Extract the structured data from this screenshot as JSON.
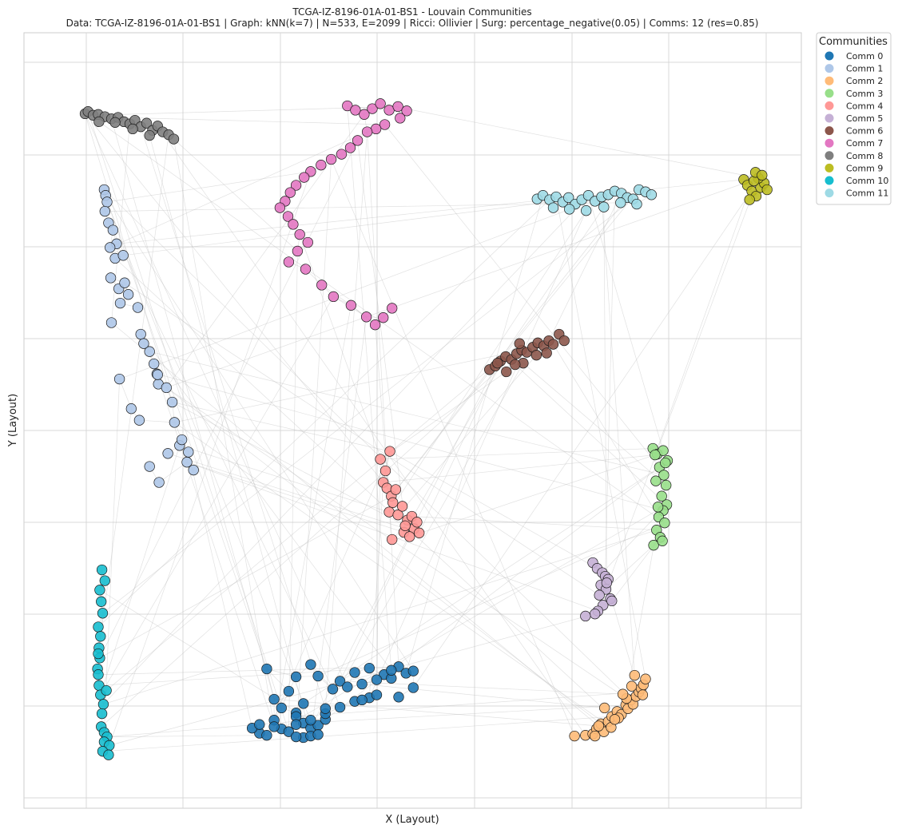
{
  "chart_data": {
    "type": "scatter",
    "title": "TCGA-IZ-8196-01A-01-BS1 - Louvain Communities",
    "subtitle": "Data: TCGA-IZ-8196-01A-01-BS1 | Graph: kNN(k=7) | N=533, E=2099 | Ricci: Ollivier | Surg: percentage_negative(0.05) | Comms: 12 (res=0.85)",
    "xlabel": "X (Layout)",
    "ylabel": "Y (Layout)",
    "xlim": [
      0,
      100
    ],
    "ylim": [
      0,
      100
    ],
    "grid": true,
    "legend": {
      "title": "Communities",
      "placement": "outside-top-right"
    },
    "series": [
      {
        "name": "Comm 0",
        "color": "#1f77b4",
        "x": [
          29,
          32,
          30,
          31,
          33,
          30,
          34,
          35,
          33,
          36,
          37,
          34,
          33,
          35,
          36,
          38,
          39,
          41,
          43,
          40,
          42,
          45,
          46,
          44,
          47,
          48,
          49,
          46,
          43,
          41,
          39,
          37,
          35,
          33,
          31,
          28,
          27,
          29,
          34,
          35,
          36,
          32,
          30,
          28,
          44,
          49,
          47,
          42,
          37,
          33
        ],
        "y": [
          16.3,
          13.2,
          12.1,
          10.9,
          10.2,
          9.2,
          8.8,
          8.1,
          9.7,
          8.5,
          9.3,
          11.5,
          15.2,
          16.9,
          15.3,
          13.5,
          14.6,
          15.8,
          16.4,
          13.8,
          14.2,
          15.5,
          15.0,
          14.8,
          16.6,
          15.7,
          16.0,
          16.1,
          12.3,
          11.8,
          11.0,
          10.1,
          9.2,
          8.6,
          8.0,
          7.4,
          8.1,
          7.1,
          6.8,
          7.0,
          7.2,
          7.6,
          8.3,
          8.6,
          12.7,
          13.7,
          12.4,
          12.0,
          10.8,
          6.9
        ]
      },
      {
        "name": "Comm 1",
        "color": "#aec7e8",
        "x": [
          6.8,
          7.0,
          7.2,
          6.9,
          7.4,
          8.0,
          8.5,
          7.6,
          8.3,
          9.4,
          7.7,
          8.8,
          9.6,
          10.1,
          9.0,
          11.4,
          11.8,
          13.0,
          12.2,
          13.6,
          14.0,
          14.2,
          15.3,
          16.1,
          17.1,
          17.4,
          18.3,
          19.0,
          15.5,
          14.3,
          13.0,
          11.6,
          10.5,
          8.9,
          7.8,
          14.1,
          16.4,
          18.1
        ],
        "y": [
          82.6,
          81.8,
          80.9,
          79.6,
          78.0,
          77.0,
          75.1,
          74.6,
          73.1,
          73.5,
          70.4,
          68.9,
          69.7,
          68.1,
          66.9,
          66.3,
          62.6,
          60.2,
          61.3,
          58.5,
          57.1,
          55.7,
          55.2,
          53.2,
          47.2,
          48.0,
          46.3,
          43.8,
          46.1,
          42.1,
          44.3,
          50.7,
          52.3,
          56.4,
          64.2,
          57.0,
          50.4,
          44.9
        ]
      },
      {
        "name": "Comm 2",
        "color": "#ffbb78",
        "x": [
          71.0,
          72.5,
          73.5,
          74.0,
          74.6,
          75.0,
          75.6,
          76.1,
          76.8,
          77.4,
          78.0,
          78.3,
          78.7,
          79.0,
          79.4,
          79.8,
          80.1,
          80.4,
          80.7,
          79.2,
          78.1,
          77.0,
          76.0,
          75.1,
          74.3,
          73.8,
          76.5,
          77.6,
          78.8,
          80.3
        ],
        "y": [
          7.0,
          7.1,
          7.3,
          8.0,
          8.7,
          7.6,
          9.0,
          9.7,
          10.4,
          10.0,
          11.3,
          10.8,
          12.0,
          11.4,
          12.5,
          13.1,
          13.6,
          14.1,
          14.9,
          15.4,
          12.2,
          9.5,
          8.2,
          10.9,
          8.4,
          7.0,
          9.3,
          12.8,
          13.9,
          12.7
        ]
      },
      {
        "name": "Comm 3",
        "color": "#98df8a",
        "x": [
          81.7,
          82.3,
          83.1,
          83.7,
          82.6,
          83.2,
          83.5,
          82.9,
          83.6,
          83.1,
          82.5,
          83.3,
          82.2,
          82.7,
          81.8,
          83.0,
          82.4,
          82.1,
          83.4,
          82.0
        ],
        "y": [
          46.8,
          46.0,
          46.5,
          45.1,
          44.2,
          43.1,
          41.7,
          40.2,
          39.0,
          38.2,
          37.3,
          36.5,
          35.5,
          34.5,
          33.4,
          34.0,
          38.7,
          42.3,
          44.8,
          45.9
        ]
      },
      {
        "name": "Comm 4",
        "color": "#ff9896",
        "x": [
          44.5,
          45.8,
          45.2,
          44.9,
          45.4,
          46.0,
          46.6,
          46.2,
          45.7,
          46.9,
          47.5,
          48.2,
          48.8,
          49.1,
          49.8,
          47.7,
          46.1,
          48.5,
          47.9,
          49.5
        ],
        "y": [
          45.3,
          46.4,
          43.7,
          42.1,
          41.3,
          40.2,
          41.1,
          39.3,
          38.0,
          37.6,
          38.8,
          36.9,
          37.4,
          35.7,
          35.1,
          35.2,
          34.2,
          34.6,
          36.1,
          36.6
        ]
      },
      {
        "name": "Comm 5",
        "color": "#c5b0d5",
        "x": [
          73.5,
          74.1,
          74.8,
          75.2,
          75.6,
          74.6,
          75.3,
          74.4,
          75.9,
          74.9,
          74.2,
          73.8,
          72.5,
          75.4,
          76.1
        ],
        "y": [
          31.0,
          30.2,
          29.6,
          29.1,
          28.7,
          27.9,
          27.3,
          26.5,
          26.0,
          25.1,
          24.3,
          23.9,
          23.6,
          28.2,
          25.7
        ],
        "x_extra": []
      },
      {
        "name": "Comm 6",
        "color": "#8c564b",
        "x": [
          59.4,
          60.2,
          60.9,
          61.6,
          62.4,
          63.1,
          63.8,
          64.5,
          65.3,
          66.0,
          66.8,
          67.5,
          68.1,
          68.9,
          69.6,
          64.0,
          62.9,
          61.7,
          60.5,
          65.8,
          67.2,
          63.5
        ],
        "y": [
          57.7,
          58.2,
          58.9,
          59.5,
          59.1,
          59.9,
          60.4,
          60.1,
          60.8,
          61.4,
          61.0,
          61.7,
          61.2,
          62.6,
          61.7,
          58.6,
          58.4,
          57.4,
          58.6,
          59.7,
          60.0,
          61.3
        ]
      },
      {
        "name": "Comm 7",
        "color": "#e377c2",
        "x": [
          40.0,
          41.1,
          42.3,
          43.4,
          44.5,
          45.7,
          46.9,
          48.1,
          47.2,
          45.1,
          43.9,
          42.7,
          41.4,
          40.4,
          39.2,
          37.8,
          36.4,
          35.0,
          34.1,
          33.0,
          32.2,
          31.5,
          30.8,
          31.9,
          32.6,
          33.5,
          34.6,
          33.2,
          32.0,
          34.3,
          36.5,
          38.1,
          40.5,
          42.6,
          43.8,
          44.9,
          46.1
        ],
        "y": [
          94.2,
          93.6,
          93.0,
          93.8,
          94.5,
          93.6,
          94.1,
          93.5,
          92.5,
          91.6,
          91.0,
          90.6,
          89.4,
          88.4,
          87.5,
          86.8,
          86.0,
          85.1,
          84.3,
          83.2,
          82.2,
          81.0,
          80.1,
          78.9,
          77.8,
          76.4,
          75.3,
          74.1,
          72.6,
          71.6,
          69.4,
          67.8,
          66.6,
          65.0,
          63.9,
          64.9,
          66.2
        ]
      },
      {
        "name": "Comm 8",
        "color": "#7f7f7f",
        "x": [
          4.2,
          4.6,
          5.3,
          6.0,
          6.9,
          7.8,
          8.7,
          9.5,
          10.3,
          11.0,
          11.8,
          12.6,
          13.4,
          14.1,
          14.8,
          15.6,
          16.3,
          13.0,
          10.7,
          8.3,
          6.1
        ],
        "y": [
          93.1,
          93.4,
          92.9,
          93.0,
          92.7,
          92.4,
          92.6,
          92.0,
          91.7,
          92.2,
          91.3,
          91.8,
          90.8,
          91.4,
          90.6,
          90.2,
          89.6,
          90.1,
          91.0,
          91.9,
          92.0
        ],
        "x_filler": []
      },
      {
        "name": "Comm 9",
        "color": "#bcbd22",
        "x": [
          94.1,
          94.6,
          95.2,
          95.8,
          96.4,
          96.9,
          97.3,
          96.1,
          95.5,
          94.9,
          95.7,
          96.6
        ],
        "y": [
          84.0,
          83.2,
          82.4,
          81.7,
          82.9,
          83.5,
          82.6,
          84.2,
          83.8,
          81.2,
          85.0,
          84.6
        ]
      },
      {
        "name": "Comm 10",
        "color": "#17becf",
        "x": [
          6.5,
          6.9,
          6.2,
          6.4,
          6.6,
          6.0,
          6.3,
          6.1,
          6.2,
          5.9,
          6.0,
          6.1,
          6.3,
          6.7,
          6.5,
          6.4,
          6.8,
          7.2,
          6.8,
          7.5,
          6.6,
          7.4,
          6.0,
          7.1
        ],
        "y": [
          30.0,
          28.5,
          27.2,
          25.6,
          24.0,
          22.1,
          20.8,
          19.2,
          17.8,
          16.3,
          15.5,
          14.0,
          12.7,
          11.4,
          10.1,
          8.3,
          7.5,
          6.9,
          6.2,
          5.7,
          4.9,
          4.4,
          18.4,
          13.3
        ]
      },
      {
        "name": "Comm 11",
        "color": "#9edae5",
        "x": [
          65.9,
          66.7,
          67.6,
          68.5,
          69.4,
          70.2,
          71.1,
          72.0,
          72.9,
          73.8,
          74.7,
          75.6,
          76.5,
          77.4,
          78.2,
          79.0,
          79.8,
          80.7,
          81.5,
          79.5,
          77.3,
          75.0,
          72.6,
          70.3,
          68.1
        ],
        "y": [
          81.3,
          81.8,
          81.2,
          81.6,
          80.9,
          81.5,
          80.6,
          81.2,
          81.8,
          81.0,
          81.6,
          81.9,
          82.4,
          82.1,
          81.5,
          81.3,
          82.6,
          82.3,
          81.9,
          80.6,
          80.8,
          80.2,
          79.7,
          79.9,
          80.1
        ]
      }
    ]
  }
}
